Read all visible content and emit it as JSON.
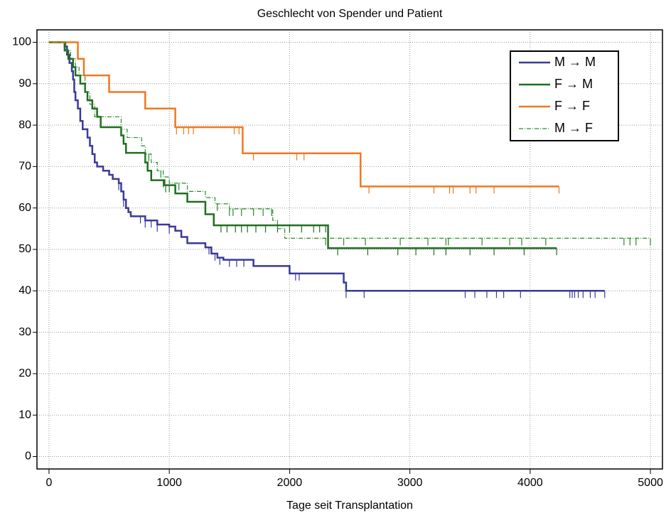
{
  "chart_data": {
    "type": "step",
    "title": "Geschlecht von Spender und Patient",
    "x_label": "Tage seit Transplantation",
    "xlim": [
      -100,
      5100
    ],
    "ylim": [
      -3,
      103
    ],
    "xticks": [
      0,
      1000,
      2000,
      3000,
      4000,
      5000
    ],
    "yticks": [
      0,
      10,
      20,
      30,
      40,
      50,
      60,
      70,
      80,
      90,
      100
    ],
    "grid": true,
    "legend": "upper right",
    "series": [
      {
        "name": "M → M",
        "color": "#3a3a9a",
        "linestyle": "solid",
        "linewidth": 2.5,
        "x": [
          0,
          130,
          150,
          170,
          190,
          200,
          210,
          220,
          240,
          260,
          280,
          320,
          340,
          360,
          380,
          400,
          450,
          500,
          530,
          580,
          600,
          620,
          640,
          660,
          680,
          800,
          900,
          1000,
          1050,
          1100,
          1150,
          1300,
          1350,
          1400,
          1450,
          1700,
          2000,
          2450,
          2470,
          4620
        ],
        "values": [
          100,
          99,
          97,
          95,
          93,
          91,
          88,
          86,
          84,
          81,
          79,
          77,
          75,
          73,
          71,
          70,
          69,
          68,
          67,
          66,
          64,
          62,
          60,
          59,
          58,
          57,
          56,
          55.5,
          54.5,
          53,
          51.5,
          50.5,
          49,
          48,
          47.5,
          46,
          44.2,
          42,
          40,
          40
        ],
        "censored": [
          580,
          620,
          760,
          800,
          850,
          900,
          1000,
          1330,
          1380,
          1420,
          1500,
          1560,
          1620,
          2050,
          2080,
          2470,
          2620,
          3460,
          3540,
          3640,
          3720,
          3780,
          3920,
          4330,
          4350,
          4370,
          4400,
          4440,
          4500,
          4540,
          4620
        ]
      },
      {
        "name": "F → M",
        "color": "#1f6e1f",
        "linestyle": "solid",
        "linewidth": 2.5,
        "x": [
          0,
          130,
          160,
          200,
          220,
          260,
          300,
          320,
          360,
          400,
          430,
          600,
          620,
          640,
          800,
          820,
          850,
          960,
          1050,
          1150,
          1300,
          1370,
          2320,
          4220
        ],
        "values": [
          100,
          98,
          96,
          94,
          92,
          90,
          88,
          86,
          84,
          82,
          79.5,
          77.5,
          75.5,
          73.3,
          71,
          69,
          66.7,
          65.5,
          63.5,
          61.5,
          58.5,
          55.8,
          50.3,
          50.3
        ],
        "censored": [
          950,
          970,
          1000,
          1430,
          1480,
          1550,
          1600,
          1650,
          1720,
          1800,
          1900,
          2000,
          2100,
          2200,
          2250,
          2300,
          2400,
          2650,
          2900,
          3050,
          3200,
          3300,
          3500,
          3700,
          3950,
          4220
        ]
      },
      {
        "name": "F → F",
        "color": "#f07820",
        "linestyle": "solid",
        "linewidth": 2.5,
        "x": [
          0,
          240,
          290,
          500,
          800,
          1050,
          1610,
          2590,
          4240
        ],
        "values": [
          100,
          96,
          92,
          88,
          84,
          79.5,
          73.2,
          65.2,
          65.2
        ],
        "censored": [
          1060,
          1120,
          1160,
          1200,
          1540,
          1580,
          1700,
          2060,
          2120,
          2660,
          3200,
          3330,
          3360,
          3500,
          3550,
          3700,
          4240
        ]
      },
      {
        "name": "M → F",
        "color": "#2a8a2a",
        "linestyle": "dashdot",
        "linewidth": 1.2,
        "x": [
          0,
          140,
          180,
          220,
          250,
          300,
          340,
          380,
          600,
          650,
          770,
          800,
          850,
          900,
          950,
          1000,
          1150,
          1300,
          1380,
          1500,
          1860,
          1900,
          1960,
          5000
        ],
        "values": [
          100,
          98,
          96,
          94,
          92,
          88,
          85,
          82,
          79,
          77,
          75,
          73,
          71,
          69,
          67.5,
          66,
          64,
          62.5,
          61,
          59.8,
          57,
          55,
          52.7,
          52.7
        ],
        "censored": [
          800,
          830,
          930,
          1080,
          1400,
          1500,
          1530,
          1600,
          1700,
          1780,
          1850,
          2300,
          2450,
          2630,
          2920,
          3150,
          3300,
          3320,
          3600,
          3830,
          3930,
          4130,
          4780,
          4830,
          4880,
          5000
        ]
      }
    ]
  }
}
